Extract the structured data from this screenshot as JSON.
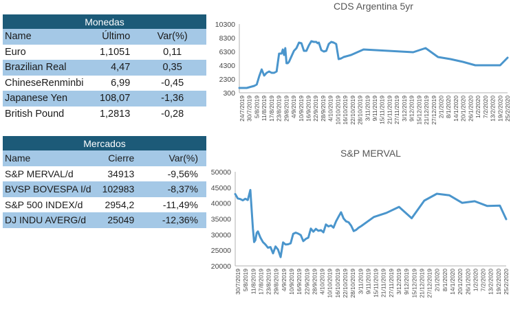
{
  "monedas": {
    "title": "Monedas",
    "headers": [
      "Name",
      "Último",
      "Var(%)"
    ],
    "rows": [
      {
        "name": "Euro",
        "last": "1,1051",
        "change": "0,11"
      },
      {
        "name": "Brazilian Real",
        "last": "4,47",
        "change": "0,35"
      },
      {
        "name": "ChineseRenminbi",
        "last": "6,99",
        "change": "-0,45"
      },
      {
        "name": "Japanese Yen",
        "last": "108,07",
        "change": "-1,36"
      },
      {
        "name": "British Pound",
        "last": "1,2813",
        "change": "-0,28"
      }
    ]
  },
  "mercados": {
    "title": "Mercados",
    "headers": [
      "Name",
      "Cierre",
      "Var(%)"
    ],
    "rows": [
      {
        "name": "S&P MERVAL/d",
        "close": "34913",
        "change": "-9,56%"
      },
      {
        "name": "BVSP BOVESPA I/d",
        "close": "102983",
        "change": "-8,37%"
      },
      {
        "name": "S&P 500 INDEX/d",
        "close": "2954,2",
        "change": "-11,49%"
      },
      {
        "name": "DJ INDU AVERG/d",
        "close": "25049",
        "change": "-12,36%"
      }
    ]
  },
  "colors": {
    "header_bg": "#1c5a78",
    "band_bg": "#a4c8e6",
    "line": "#4a95cc"
  },
  "chart_data": [
    {
      "type": "line",
      "title": "CDS Argentina 5yr",
      "xlabel": "",
      "ylabel": "",
      "ylim": [
        300,
        10300
      ],
      "yticks": [
        "10300",
        "8300",
        "6300",
        "4300",
        "2300",
        "300"
      ],
      "xticks": [
        "24/7/2019",
        "30/7/2019",
        "5/8/2019",
        "11/8/2019",
        "17/8/2019",
        "23/8/2019",
        "29/8/2019",
        "4/9/2019",
        "10/9/2019",
        "16/9/2019",
        "22/9/2019",
        "28/9/2019",
        "4/10/2019",
        "10/10/2019",
        "16/10/2019",
        "22/10/2019",
        "28/10/2019",
        "3/11/2019",
        "9/11/2019",
        "15/11/2019",
        "21/11/2019",
        "27/11/2019",
        "3/12/2019",
        "9/12/2019",
        "15/12/2019",
        "21/12/2019",
        "27/12/2019",
        "2/1/2020",
        "8/1/2020",
        "14/1/2020",
        "20/1/2020",
        "26/1/2020",
        "1/2/2020",
        "7/2/2020",
        "13/2/2020",
        "19/2/2020",
        "25/2/2020"
      ],
      "x": [
        0,
        6,
        12,
        14,
        16,
        18,
        20,
        22,
        24,
        26,
        28,
        30,
        32,
        34,
        35,
        36,
        37,
        38,
        39,
        40,
        42,
        44,
        45,
        46,
        48,
        50,
        52,
        54,
        56,
        58,
        60,
        62,
        63,
        64,
        66,
        68,
        70,
        72,
        74,
        76,
        78,
        80,
        82,
        84,
        90,
        100,
        110,
        120,
        130,
        140,
        150,
        160,
        170,
        180,
        190,
        200,
        210,
        216
      ],
      "values": [
        1000,
        1000,
        1300,
        1500,
        2700,
        3700,
        2800,
        3200,
        3400,
        3200,
        3200,
        3400,
        6000,
        6000,
        6600,
        5800,
        6800,
        4600,
        4600,
        4800,
        5600,
        6400,
        6600,
        6800,
        7600,
        7500,
        6400,
        6400,
        7200,
        7800,
        7700,
        7700,
        7500,
        7600,
        6500,
        6300,
        6400,
        7400,
        7700,
        7600,
        7400,
        5200,
        5300,
        5500,
        5800,
        6600,
        6500,
        6400,
        6300,
        6200,
        6800,
        5500,
        5200,
        4800,
        4300,
        4300,
        4300,
        5400
      ]
    },
    {
      "type": "line",
      "title": "S&P MERVAL",
      "xlabel": "",
      "ylabel": "",
      "ylim": [
        20000,
        50000
      ],
      "yticks": [
        "50000",
        "45000",
        "40000",
        "35000",
        "30000",
        "25000",
        "20000"
      ],
      "xticks": [
        "30/7/2019",
        "5/8/2019",
        "11/8/2019",
        "17/8/2019",
        "23/8/2019",
        "29/8/2019",
        "4/9/2019",
        "10/9/2019",
        "16/9/2019",
        "22/9/2019",
        "28/9/2019",
        "4/10/2019",
        "10/10/2019",
        "16/10/2019",
        "22/10/2019",
        "28/10/2019",
        "3/11/2019",
        "9/11/2019",
        "15/11/2019",
        "21/11/2019",
        "27/11/2019",
        "3/12/2019",
        "9/12/2019",
        "15/12/2019",
        "21/12/2019",
        "27/12/2019",
        "2/1/2020",
        "8/1/2020",
        "14/1/2020",
        "20/1/2020",
        "26/1/2020",
        "1/2/2020",
        "7/2/2020",
        "13/2/2020",
        "19/2/2020",
        "25/2/2020"
      ],
      "x": [
        0,
        2,
        4,
        6,
        8,
        10,
        12,
        14,
        15,
        16,
        17,
        18,
        20,
        22,
        24,
        26,
        28,
        30,
        32,
        34,
        36,
        38,
        40,
        42,
        44,
        46,
        48,
        50,
        52,
        54,
        56,
        58,
        60,
        62,
        64,
        66,
        68,
        70,
        72,
        74,
        76,
        78,
        80,
        82,
        84,
        86,
        88,
        90,
        92,
        94,
        96,
        98,
        100,
        110,
        120,
        130,
        140,
        150,
        160,
        170,
        180,
        190,
        200,
        210,
        215
      ],
      "values": [
        42900,
        41500,
        41300,
        40900,
        41400,
        41000,
        44200,
        32000,
        27600,
        28200,
        30500,
        31000,
        29000,
        27600,
        26800,
        25800,
        26000,
        24000,
        26200,
        25200,
        22800,
        27500,
        26800,
        26900,
        27200,
        30200,
        30600,
        30300,
        29800,
        27900,
        28600,
        29000,
        31900,
        30900,
        31800,
        31200,
        31400,
        30700,
        33200,
        32600,
        32900,
        32200,
        34200,
        35700,
        37100,
        35100,
        34200,
        33900,
        32800,
        31100,
        31500,
        32200,
        32700,
        35600,
        36900,
        38800,
        35200,
        40800,
        43000,
        42500,
        40100,
        40600,
        39100,
        39200,
        34900
      ]
    }
  ]
}
